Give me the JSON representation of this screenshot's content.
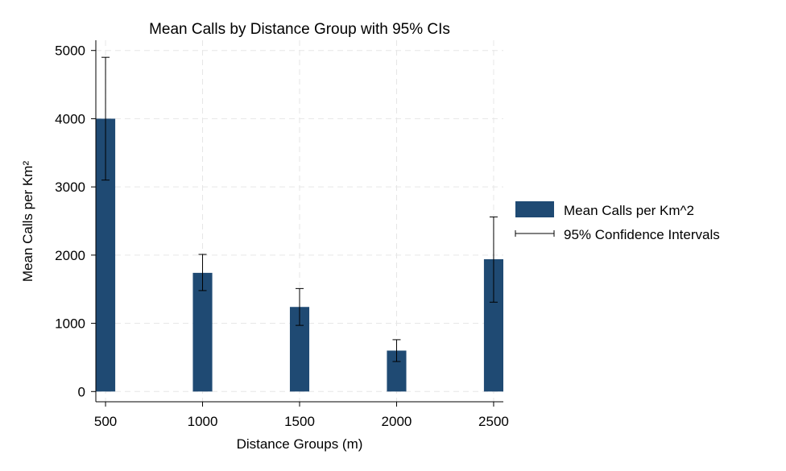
{
  "chart_data": {
    "type": "bar",
    "title": "Mean Calls by Distance Group with 95% CIs",
    "xlabel": "Distance Groups (m)",
    "ylabel": "Mean Calls per Km²",
    "categories": [
      500,
      1000,
      1500,
      2000,
      2500
    ],
    "series": [
      {
        "name": "Mean Calls per Km^2",
        "values": [
          4000,
          1740,
          1240,
          600,
          1940
        ],
        "ci_lower": [
          3100,
          1480,
          970,
          440,
          1310
        ],
        "ci_upper": [
          4900,
          2010,
          1510,
          760,
          2560
        ]
      }
    ],
    "error_bar_label": "95% Confidence Intervals",
    "xticks": [
      500,
      1000,
      1500,
      2000,
      2500
    ],
    "yticks": [
      0,
      1000,
      2000,
      3000,
      4000,
      5000
    ],
    "xlim": [
      450,
      2550
    ],
    "ylim": [
      -150,
      5150
    ],
    "bar_width": 100,
    "bar_color": "#1f4a73",
    "grid": true,
    "legend_position": "right"
  }
}
